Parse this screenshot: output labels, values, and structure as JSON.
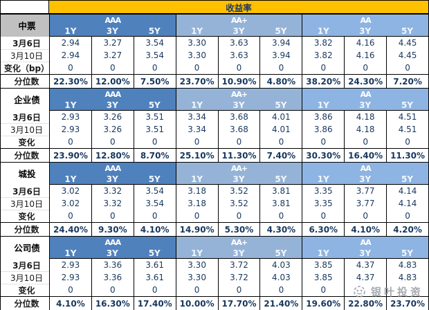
{
  "header": {
    "yield_label": "收益率"
  },
  "ratings": [
    "AAA",
    "AA+",
    "AA"
  ],
  "tenors": [
    "1Y",
    "3Y",
    "5Y"
  ],
  "colors": {
    "band": "#ffc000",
    "rating_aaa": "#4f81bd",
    "rating_aa_plus": "#95b3d7",
    "rating_aa": "#8db4e2",
    "value_text": "#17375e",
    "section_label_shade": "#c0c0c0"
  },
  "sections": [
    {
      "name": "中票",
      "label_shaded": true,
      "rows": [
        {
          "label": "3月6日",
          "bold": true,
          "values": [
            "2.94",
            "3.27",
            "3.54",
            "3.30",
            "3.63",
            "3.94",
            "3.82",
            "4.16",
            "4.45"
          ]
        },
        {
          "label": "3月10日",
          "bold": false,
          "values": [
            "2.94",
            "3.27",
            "3.54",
            "3.30",
            "3.63",
            "3.94",
            "3.82",
            "4.16",
            "4.45"
          ]
        },
        {
          "label": "变化（bp）",
          "bold": true,
          "values": [
            "0",
            "0",
            "0",
            "0",
            "0",
            "0",
            "0",
            "0",
            "0"
          ]
        },
        {
          "label": "分位数",
          "bold": true,
          "values": [
            "22.30%",
            "12.00%",
            "7.50%",
            "23.70%",
            "10.90%",
            "4.80%",
            "38.20%",
            "24.30%",
            "7.20%"
          ]
        }
      ]
    },
    {
      "name": "企业债",
      "label_shaded": false,
      "rows": [
        {
          "label": "3月6日",
          "bold": true,
          "values": [
            "2.93",
            "3.26",
            "3.51",
            "3.34",
            "3.68",
            "4.01",
            "3.86",
            "4.18",
            "4.51"
          ]
        },
        {
          "label": "3月10日",
          "bold": false,
          "values": [
            "2.93",
            "3.26",
            "3.51",
            "3.34",
            "3.68",
            "4.01",
            "3.86",
            "4.18",
            "4.51"
          ]
        },
        {
          "label": "变化",
          "bold": true,
          "values": [
            "0",
            "0",
            "0",
            "0",
            "0",
            "0",
            "0",
            "0",
            "0"
          ]
        },
        {
          "label": "分位数",
          "bold": true,
          "values": [
            "23.90%",
            "12.80%",
            "8.70%",
            "25.10%",
            "11.30%",
            "7.40%",
            "30.30%",
            "16.40%",
            "11.30%"
          ]
        }
      ]
    },
    {
      "name": "城投",
      "label_shaded": false,
      "rows": [
        {
          "label": "3月6日",
          "bold": true,
          "values": [
            "3.02",
            "3.32",
            "3.54",
            "3.18",
            "3.52",
            "3.81",
            "3.35",
            "3.77",
            "4.14"
          ]
        },
        {
          "label": "3月10日",
          "bold": false,
          "values": [
            "3.02",
            "3.32",
            "3.54",
            "3.18",
            "3.52",
            "3.81",
            "3.35",
            "3.77",
            "4.14"
          ]
        },
        {
          "label": "变化",
          "bold": true,
          "values": [
            "0",
            "0",
            "0",
            "0",
            "0",
            "0",
            "0",
            "0",
            "0"
          ]
        },
        {
          "label": "分位数",
          "bold": true,
          "values": [
            "24.40%",
            "9.30%",
            "4.10%",
            "14.90%",
            "5.30%",
            "4.30%",
            "6.30%",
            "4.10%",
            "4.20%"
          ]
        }
      ]
    },
    {
      "name": "公司债",
      "label_shaded": false,
      "rows": [
        {
          "label": "3月6日",
          "bold": true,
          "values": [
            "2.93",
            "3.36",
            "3.61",
            "3.30",
            "3.72",
            "4.03",
            "3.85",
            "4.37",
            "4.83"
          ]
        },
        {
          "label": "3月10日",
          "bold": false,
          "values": [
            "2.93",
            "3.36",
            "3.61",
            "3.30",
            "3.72",
            "4.03",
            "3.85",
            "4.37",
            "4.83"
          ]
        },
        {
          "label": "变化",
          "bold": true,
          "values": [
            "0",
            "0",
            "0",
            "0",
            "0",
            "0",
            "0",
            "",
            ""
          ]
        },
        {
          "label": "分位数",
          "bold": true,
          "values": [
            "4.10%",
            "16.30%",
            "17.40%",
            "10.00%",
            "17.70%",
            "21.40%",
            "19.60%",
            "22.80%",
            "23.70%"
          ]
        }
      ]
    }
  ],
  "watermark": {
    "text": "银叶投资"
  }
}
